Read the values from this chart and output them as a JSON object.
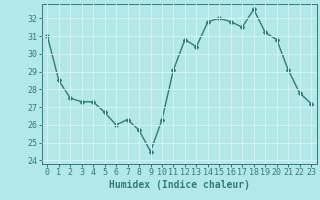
{
  "x": [
    0,
    1,
    2,
    3,
    4,
    5,
    6,
    7,
    8,
    9,
    10,
    11,
    12,
    13,
    14,
    15,
    16,
    17,
    18,
    19,
    20,
    21,
    22,
    23
  ],
  "y": [
    31.0,
    28.5,
    27.5,
    27.3,
    27.3,
    26.7,
    26.0,
    26.3,
    25.7,
    24.5,
    26.3,
    29.1,
    30.8,
    30.4,
    31.8,
    32.0,
    31.8,
    31.5,
    32.5,
    31.2,
    30.8,
    29.1,
    27.8,
    27.2
  ],
  "line_color": "#2d7d7d",
  "marker": "D",
  "marker_size": 2.0,
  "bg_color": "#b3e8e8",
  "grid_color": "#d9f0f0",
  "xlabel": "Humidex (Indice chaleur)",
  "ylim": [
    23.8,
    32.8
  ],
  "xlim": [
    -0.5,
    23.5
  ],
  "yticks": [
    24,
    25,
    26,
    27,
    28,
    29,
    30,
    31,
    32
  ],
  "xticks": [
    0,
    1,
    2,
    3,
    4,
    5,
    6,
    7,
    8,
    9,
    10,
    11,
    12,
    13,
    14,
    15,
    16,
    17,
    18,
    19,
    20,
    21,
    22,
    23
  ],
  "xlabel_fontsize": 7,
  "tick_fontsize": 6,
  "line_width": 1.0
}
